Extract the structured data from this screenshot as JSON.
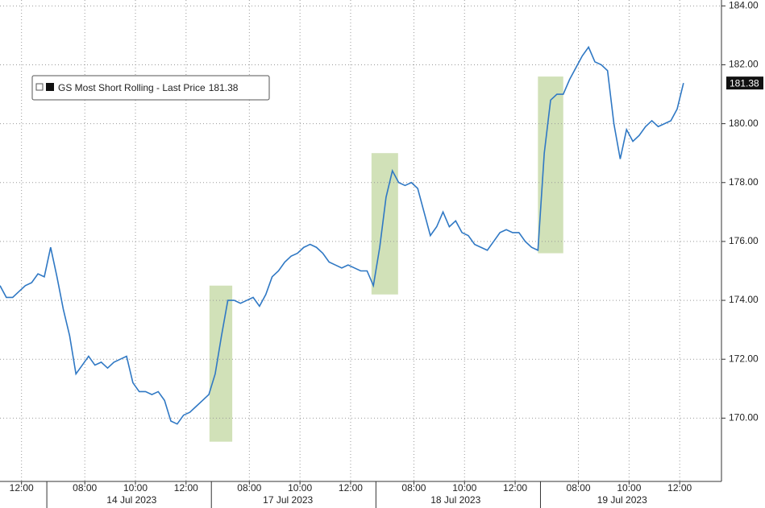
{
  "chart_data": {
    "type": "line",
    "series": [
      {
        "name": "GS Most Short Rolling - Last Price",
        "color": "#2f78c4",
        "values": [
          174.5,
          174.1,
          174.1,
          174.3,
          174.5,
          174.6,
          174.9,
          174.8,
          175.8,
          174.8,
          173.7,
          172.8,
          171.5,
          171.8,
          172.1,
          171.8,
          171.9,
          171.7,
          171.9,
          172.0,
          172.1,
          171.2,
          170.9,
          170.9,
          170.8,
          170.9,
          170.6,
          169.9,
          169.8,
          170.1,
          170.2,
          170.4,
          170.6,
          170.8,
          171.5,
          172.8,
          174.0,
          174.0,
          173.9,
          174.0,
          174.1,
          173.8,
          174.2,
          174.8,
          175.0,
          175.3,
          175.5,
          175.6,
          175.8,
          175.9,
          175.8,
          175.6,
          175.3,
          175.2,
          175.1,
          175.2,
          175.1,
          175.0,
          175.0,
          174.5,
          175.8,
          177.5,
          178.4,
          178.0,
          177.9,
          178.0,
          177.8,
          177.0,
          176.2,
          176.5,
          177.0,
          176.5,
          176.7,
          176.3,
          176.2,
          175.9,
          175.8,
          175.7,
          176.0,
          176.3,
          176.4,
          176.3,
          176.3,
          176.0,
          175.8,
          175.7,
          179.0,
          180.8,
          181.0,
          181.0,
          181.5,
          181.9,
          182.3,
          182.6,
          182.1,
          182.0,
          181.8,
          180.0,
          178.8,
          179.8,
          179.4,
          179.6,
          179.9,
          180.1,
          179.9,
          180.0,
          180.1,
          180.5,
          181.38
        ]
      }
    ],
    "x": [
      0,
      1,
      2,
      3,
      4,
      5,
      6,
      7,
      8,
      9,
      10,
      11,
      12,
      13,
      14,
      15,
      16,
      17,
      18,
      19,
      20,
      21,
      22,
      23,
      24,
      25,
      26,
      27,
      28,
      29,
      30,
      31,
      32,
      33,
      34,
      35,
      36,
      37,
      38,
      39,
      40,
      41,
      42,
      43,
      44,
      45,
      46,
      47,
      48,
      49,
      50,
      51,
      52,
      53,
      54,
      55,
      56,
      57,
      58,
      59,
      60,
      61,
      62,
      63,
      64,
      65,
      66,
      67,
      68,
      69,
      70,
      71,
      72,
      73,
      74,
      75,
      76,
      77,
      78,
      79,
      80,
      81,
      82,
      83,
      84,
      85,
      86,
      87,
      88,
      89,
      90,
      91,
      92,
      93,
      94,
      95,
      96,
      97,
      98,
      99,
      100,
      101,
      102,
      103,
      104,
      105,
      106,
      107,
      108
    ],
    "last_value": 181.38,
    "xlim": [
      0,
      114
    ],
    "ylim": [
      167.85,
      184.2
    ],
    "yticks": [
      {
        "value": 170,
        "label": "170.00"
      },
      {
        "value": 172,
        "label": "172.00"
      },
      {
        "value": 174,
        "label": "174.00"
      },
      {
        "value": 176,
        "label": "176.00"
      },
      {
        "value": 178,
        "label": "178.00"
      },
      {
        "value": 180,
        "label": "180.00"
      },
      {
        "value": 182,
        "label": "182.00"
      },
      {
        "value": 184,
        "label": "184.00"
      }
    ],
    "xticks": [
      {
        "value": 3.4,
        "label": "12:00"
      },
      {
        "value": 13.4,
        "label": "08:00"
      },
      {
        "value": 21.4,
        "label": "10:00"
      },
      {
        "value": 29.4,
        "label": "12:00"
      },
      {
        "value": 39.4,
        "label": "08:00"
      },
      {
        "value": 47.4,
        "label": "10:00"
      },
      {
        "value": 55.4,
        "label": "12:00"
      },
      {
        "value": 65.4,
        "label": "08:00"
      },
      {
        "value": 73.4,
        "label": "10:00"
      },
      {
        "value": 81.4,
        "label": "12:00"
      },
      {
        "value": 91.4,
        "label": "08:00"
      },
      {
        "value": 99.4,
        "label": "10:00"
      },
      {
        "value": 107.4,
        "label": "12:00"
      }
    ],
    "day_separators": [
      7.4,
      33.4,
      59.4,
      85.4
    ],
    "day_labels": [
      {
        "x": 20.8,
        "label": "14 Jul 2023"
      },
      {
        "x": 45.5,
        "label": "17 Jul 2023"
      },
      {
        "x": 72,
        "label": "18 Jul 2023"
      },
      {
        "x": 98.3,
        "label": "19 Jul 2023"
      }
    ],
    "highlights": [
      {
        "x0": 33.1,
        "x1": 36.7,
        "y0": 169.2,
        "y1": 174.5
      },
      {
        "x0": 58.7,
        "x1": 62.9,
        "y0": 174.2,
        "y1": 179
      },
      {
        "x0": 85,
        "x1": 89,
        "y0": 175.6,
        "y1": 181.6
      }
    ],
    "highlight_color": "#c9dcab",
    "grid": true
  }
}
